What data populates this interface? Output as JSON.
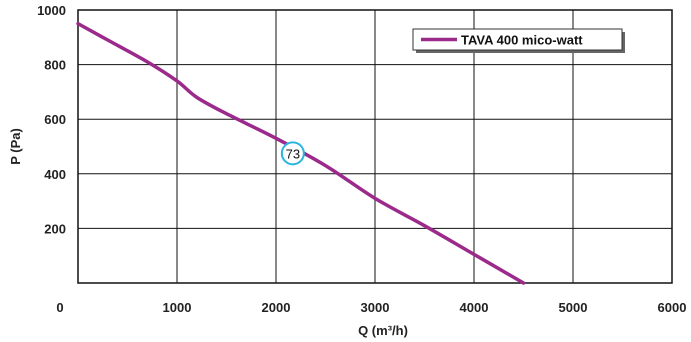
{
  "chart_data": {
    "type": "line",
    "xlabel": "Q (m³/h)",
    "ylabel": "P (Pa)",
    "xlim": [
      0,
      6000
    ],
    "ylim": [
      0,
      1000
    ],
    "x_ticks": [
      "0",
      "1000",
      "2000",
      "3000",
      "4000",
      "5000",
      "6000"
    ],
    "y_ticks": [
      "200",
      "400",
      "600",
      "800",
      "1000"
    ],
    "grid": true,
    "legend_position": "top-right",
    "series": [
      {
        "name": "TAVA 400 mico-watt",
        "color": "#9b2a8a",
        "x": [
          0,
          300,
          700,
          1000,
          1200,
          1500,
          2000,
          2500,
          3000,
          3500,
          4000,
          4500
        ],
        "y": [
          950,
          890,
          810,
          740,
          680,
          620,
          530,
          430,
          310,
          210,
          105,
          0
        ]
      }
    ],
    "annotations": [
      {
        "text": "73",
        "x": 2170,
        "y": 475,
        "color": "#29b6e0"
      }
    ]
  }
}
